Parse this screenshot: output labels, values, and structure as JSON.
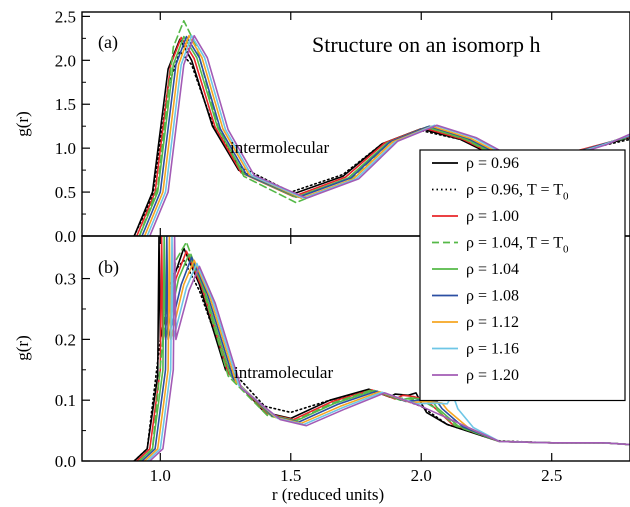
{
  "figure": {
    "title": "Structure on an isomorp  h",
    "xlabel": "r  (reduced units)",
    "ylabel": "g(r)"
  },
  "legend": [
    {
      "rho": "ρ = 0.96",
      "suffix": "",
      "color": "#000000",
      "dash": "solid"
    },
    {
      "rho": "ρ = 0.96, T = T",
      "suffix": "0",
      "color": "#000000",
      "dash": "dotted"
    },
    {
      "rho": "ρ = 1.00",
      "suffix": "",
      "color": "#e8262a",
      "dash": "solid"
    },
    {
      "rho": "ρ = 1.04, T = T",
      "suffix": "0",
      "color": "#55b947",
      "dash": "dashed"
    },
    {
      "rho": "ρ = 1.04",
      "suffix": "",
      "color": "#55b947",
      "dash": "solid"
    },
    {
      "rho": "ρ = 1.08",
      "suffix": "",
      "color": "#2b4fa3",
      "dash": "solid"
    },
    {
      "rho": "ρ = 1.12",
      "suffix": "",
      "color": "#f6a623",
      "dash": "solid"
    },
    {
      "rho": "ρ = 1.16",
      "suffix": "",
      "color": "#6ec6e6",
      "dash": "solid"
    },
    {
      "rho": "ρ = 1.20",
      "suffix": "",
      "color": "#a35bb5",
      "dash": "solid"
    }
  ],
  "chart_data": [
    {
      "type": "line",
      "panel_label": "(a)",
      "annotation": "intermolecular",
      "xlim": [
        0.7,
        2.8
      ],
      "ylim": [
        0.0,
        2.55
      ],
      "xticks": [
        1.0,
        1.5,
        2.0,
        2.5
      ],
      "yticks": [
        0.0,
        0.5,
        1.0,
        1.5,
        2.0,
        2.5
      ],
      "ytick_labels": [
        "0.0",
        "0.5",
        "1.0",
        "1.5",
        "2.0",
        "2.5"
      ],
      "series": [
        {
          "name": "ρ = 0.96",
          "color": "#000000",
          "dash": "solid",
          "x": [
            0.9,
            0.97,
            1.03,
            1.075,
            1.12,
            1.2,
            1.3,
            1.5,
            1.7,
            1.85,
            2.0,
            2.15,
            2.3,
            2.5,
            2.65,
            2.8
          ],
          "y": [
            0.0,
            0.5,
            1.9,
            2.24,
            2.0,
            1.25,
            0.75,
            0.47,
            0.68,
            1.05,
            1.22,
            1.1,
            0.88,
            0.9,
            1.0,
            1.12
          ]
        },
        {
          "name": "ρ = 0.96, T = T0",
          "color": "#000000",
          "dash": "dotted",
          "x": [
            0.9,
            0.97,
            1.03,
            1.075,
            1.12,
            1.2,
            1.3,
            1.5,
            1.7,
            1.85,
            2.0,
            2.15,
            2.3,
            2.5,
            2.65,
            2.8
          ],
          "y": [
            0.0,
            0.45,
            1.7,
            2.1,
            1.95,
            1.28,
            0.8,
            0.5,
            0.7,
            1.05,
            1.2,
            1.1,
            0.9,
            0.9,
            1.0,
            1.1
          ]
        },
        {
          "name": "ρ = 1.00",
          "color": "#e8262a",
          "dash": "solid",
          "x": [
            0.91,
            0.98,
            1.04,
            1.08,
            1.13,
            1.21,
            1.31,
            1.51,
            1.71,
            1.86,
            2.01,
            2.16,
            2.31,
            2.51,
            2.66,
            2.8
          ],
          "y": [
            0.0,
            0.5,
            1.95,
            2.26,
            2.02,
            1.24,
            0.72,
            0.45,
            0.67,
            1.06,
            1.23,
            1.1,
            0.88,
            0.9,
            1.02,
            1.13
          ]
        },
        {
          "name": "ρ = 1.04, T = T0",
          "color": "#55b947",
          "dash": "dashed",
          "x": [
            0.92,
            0.99,
            1.05,
            1.09,
            1.14,
            1.22,
            1.32,
            1.52,
            1.72,
            1.87,
            2.02,
            2.17,
            2.32,
            2.52,
            2.67,
            2.8
          ],
          "y": [
            0.0,
            0.55,
            2.15,
            2.45,
            2.15,
            1.25,
            0.68,
            0.38,
            0.62,
            1.04,
            1.24,
            1.1,
            0.86,
            0.88,
            1.02,
            1.13
          ]
        },
        {
          "name": "ρ = 1.04",
          "color": "#55b947",
          "dash": "solid",
          "x": [
            0.92,
            0.99,
            1.05,
            1.09,
            1.14,
            1.22,
            1.32,
            1.52,
            1.72,
            1.87,
            2.02,
            2.17,
            2.32,
            2.52,
            2.67,
            2.8
          ],
          "y": [
            0.0,
            0.5,
            1.95,
            2.27,
            2.03,
            1.23,
            0.71,
            0.44,
            0.66,
            1.06,
            1.24,
            1.11,
            0.88,
            0.9,
            1.02,
            1.14
          ]
        },
        {
          "name": "ρ = 1.08",
          "color": "#2b4fa3",
          "dash": "solid",
          "x": [
            0.93,
            1.0,
            1.06,
            1.1,
            1.15,
            1.23,
            1.33,
            1.53,
            1.73,
            1.88,
            2.03,
            2.18,
            2.33,
            2.53,
            2.68,
            2.8
          ],
          "y": [
            0.0,
            0.5,
            1.95,
            2.27,
            2.03,
            1.22,
            0.7,
            0.44,
            0.66,
            1.07,
            1.25,
            1.11,
            0.88,
            0.9,
            1.03,
            1.14
          ]
        },
        {
          "name": "ρ = 1.12",
          "color": "#f6a623",
          "dash": "solid",
          "x": [
            0.94,
            1.01,
            1.07,
            1.11,
            1.16,
            1.24,
            1.34,
            1.54,
            1.74,
            1.89,
            2.04,
            2.19,
            2.34,
            2.54,
            2.69,
            2.8
          ],
          "y": [
            0.0,
            0.5,
            1.95,
            2.28,
            2.03,
            1.22,
            0.7,
            0.43,
            0.65,
            1.07,
            1.25,
            1.11,
            0.88,
            0.9,
            1.03,
            1.15
          ]
        },
        {
          "name": "ρ = 1.16",
          "color": "#6ec6e6",
          "dash": "solid",
          "x": [
            0.95,
            1.02,
            1.08,
            1.12,
            1.17,
            1.25,
            1.35,
            1.55,
            1.75,
            1.9,
            2.05,
            2.2,
            2.35,
            2.55,
            2.7,
            2.8
          ],
          "y": [
            0.0,
            0.5,
            1.95,
            2.28,
            2.03,
            1.21,
            0.69,
            0.43,
            0.65,
            1.07,
            1.26,
            1.12,
            0.88,
            0.9,
            1.04,
            1.15
          ]
        },
        {
          "name": "ρ = 1.20",
          "color": "#a35bb5",
          "dash": "solid",
          "x": [
            0.96,
            1.03,
            1.09,
            1.13,
            1.18,
            1.26,
            1.36,
            1.56,
            1.76,
            1.91,
            2.06,
            2.21,
            2.36,
            2.56,
            2.71,
            2.8
          ],
          "y": [
            0.0,
            0.5,
            1.95,
            2.28,
            2.03,
            1.21,
            0.69,
            0.43,
            0.65,
            1.08,
            1.26,
            1.12,
            0.88,
            0.9,
            1.04,
            1.16
          ]
        }
      ]
    },
    {
      "type": "line",
      "panel_label": "(b)",
      "annotation": "intramolecular",
      "xlim": [
        0.7,
        2.8
      ],
      "ylim": [
        0.0,
        0.37
      ],
      "xticks": [
        1.0,
        1.5,
        2.0,
        2.5
      ],
      "xtick_labels": [
        "1.0",
        "1.5",
        "2.0",
        "2.5"
      ],
      "yticks": [
        0.0,
        0.1,
        0.2,
        0.3
      ],
      "ytick_labels": [
        "0.0",
        "0.1",
        "0.2",
        "0.3"
      ],
      "series": [
        {
          "name": "ρ = 0.96",
          "color": "#000000",
          "dash": "solid",
          "x": [
            0.9,
            0.95,
            0.99,
            0.995,
            1.0,
            1.05,
            1.09,
            1.15,
            1.25,
            1.4,
            1.5,
            1.65,
            1.8,
            1.88,
            1.9,
            1.95,
            1.98,
            2.0,
            2.02,
            2.1,
            2.3,
            2.5,
            2.7,
            2.8
          ],
          "y": [
            0.0,
            0.02,
            0.14,
            0.37,
            0.2,
            0.3,
            0.35,
            0.29,
            0.15,
            0.08,
            0.07,
            0.1,
            0.118,
            0.105,
            0.11,
            0.108,
            0.112,
            0.095,
            0.08,
            0.06,
            0.032,
            0.03,
            0.03,
            0.027
          ]
        },
        {
          "name": "ρ = 0.96, T = T0",
          "color": "#000000",
          "dash": "dotted",
          "x": [
            0.9,
            0.95,
            1.0,
            1.05,
            1.09,
            1.15,
            1.25,
            1.4,
            1.5,
            1.65,
            1.8,
            1.9,
            2.0,
            2.1,
            2.3,
            2.5,
            2.7,
            2.8
          ],
          "y": [
            0.0,
            0.02,
            0.2,
            0.31,
            0.33,
            0.28,
            0.16,
            0.09,
            0.08,
            0.1,
            0.115,
            0.105,
            0.09,
            0.06,
            0.033,
            0.03,
            0.03,
            0.027
          ]
        },
        {
          "name": "ρ = 1.00",
          "color": "#e8262a",
          "dash": "solid",
          "x": [
            0.91,
            0.96,
            1.0,
            1.005,
            1.01,
            1.06,
            1.1,
            1.16,
            1.26,
            1.41,
            1.51,
            1.66,
            1.81,
            1.9,
            1.93,
            1.97,
            2.02,
            2.04,
            2.12,
            2.3,
            2.5,
            2.7,
            2.8
          ],
          "y": [
            0.0,
            0.02,
            0.15,
            0.37,
            0.2,
            0.3,
            0.345,
            0.285,
            0.145,
            0.078,
            0.068,
            0.098,
            0.117,
            0.102,
            0.108,
            0.106,
            0.1,
            0.092,
            0.06,
            0.032,
            0.03,
            0.03,
            0.027
          ]
        },
        {
          "name": "ρ = 1.04, T = T0",
          "color": "#55b947",
          "dash": "dashed",
          "x": [
            0.92,
            0.97,
            1.01,
            1.06,
            1.1,
            1.16,
            1.26,
            1.41,
            1.51,
            1.66,
            1.81,
            1.91,
            2.0,
            2.05,
            2.13,
            2.3,
            2.5,
            2.7,
            2.8
          ],
          "y": [
            0.0,
            0.02,
            0.2,
            0.33,
            0.36,
            0.29,
            0.14,
            0.075,
            0.065,
            0.095,
            0.117,
            0.104,
            0.1,
            0.088,
            0.058,
            0.032,
            0.03,
            0.03,
            0.027
          ]
        },
        {
          "name": "ρ = 1.04",
          "color": "#55b947",
          "dash": "solid",
          "x": [
            0.92,
            0.97,
            1.01,
            1.015,
            1.02,
            1.07,
            1.11,
            1.17,
            1.27,
            1.42,
            1.52,
            1.67,
            1.82,
            1.92,
            1.96,
            2.0,
            2.04,
            2.06,
            2.14,
            2.3,
            2.5,
            2.7,
            2.8
          ],
          "y": [
            0.0,
            0.02,
            0.15,
            0.37,
            0.2,
            0.3,
            0.34,
            0.28,
            0.14,
            0.076,
            0.066,
            0.095,
            0.116,
            0.1,
            0.104,
            0.102,
            0.1,
            0.088,
            0.058,
            0.032,
            0.03,
            0.03,
            0.027
          ]
        },
        {
          "name": "ρ = 1.08",
          "color": "#2b4fa3",
          "dash": "solid",
          "x": [
            0.93,
            0.98,
            1.02,
            1.025,
            1.03,
            1.08,
            1.12,
            1.18,
            1.28,
            1.43,
            1.53,
            1.68,
            1.83,
            1.94,
            1.99,
            2.03,
            2.06,
            2.08,
            2.16,
            2.3,
            2.5,
            2.7,
            2.8
          ],
          "y": [
            0.0,
            0.02,
            0.15,
            0.37,
            0.2,
            0.29,
            0.335,
            0.275,
            0.135,
            0.074,
            0.064,
            0.093,
            0.115,
            0.098,
            0.1,
            0.098,
            0.098,
            0.086,
            0.056,
            0.032,
            0.03,
            0.03,
            0.027
          ]
        },
        {
          "name": "ρ = 1.12",
          "color": "#f6a623",
          "dash": "solid",
          "x": [
            0.94,
            0.99,
            1.03,
            1.035,
            1.04,
            1.09,
            1.13,
            1.19,
            1.29,
            1.44,
            1.54,
            1.69,
            1.84,
            1.96,
            2.02,
            2.06,
            2.08,
            2.1,
            2.18,
            2.3,
            2.5,
            2.7,
            2.8
          ],
          "y": [
            0.0,
            0.02,
            0.15,
            0.37,
            0.2,
            0.29,
            0.33,
            0.27,
            0.13,
            0.072,
            0.062,
            0.09,
            0.114,
            0.096,
            0.098,
            0.096,
            0.095,
            0.084,
            0.055,
            0.032,
            0.03,
            0.03,
            0.027
          ]
        },
        {
          "name": "ρ = 1.16",
          "color": "#6ec6e6",
          "dash": "solid",
          "x": [
            0.95,
            1.0,
            1.04,
            1.045,
            1.05,
            1.1,
            1.14,
            1.2,
            1.3,
            1.45,
            1.55,
            1.7,
            1.85,
            1.98,
            2.05,
            2.1,
            2.12,
            2.14,
            2.2,
            2.3,
            2.5,
            2.7,
            2.8
          ],
          "y": [
            0.0,
            0.02,
            0.15,
            0.37,
            0.2,
            0.285,
            0.325,
            0.265,
            0.125,
            0.07,
            0.06,
            0.088,
            0.113,
            0.094,
            0.095,
            0.094,
            0.11,
            0.086,
            0.055,
            0.032,
            0.03,
            0.03,
            0.027
          ]
        },
        {
          "name": "ρ = 1.20",
          "color": "#a35bb5",
          "dash": "solid",
          "x": [
            0.96,
            1.01,
            1.05,
            1.055,
            1.06,
            1.11,
            1.15,
            1.21,
            1.31,
            1.46,
            1.56,
            1.71,
            1.86,
            2.0,
            2.3,
            2.5,
            2.7,
            2.8
          ],
          "y": [
            0.0,
            0.02,
            0.15,
            0.37,
            0.2,
            0.28,
            0.32,
            0.26,
            0.12,
            0.068,
            0.058,
            0.086,
            0.112,
            0.09,
            0.032,
            0.03,
            0.03,
            0.027
          ]
        }
      ]
    }
  ]
}
